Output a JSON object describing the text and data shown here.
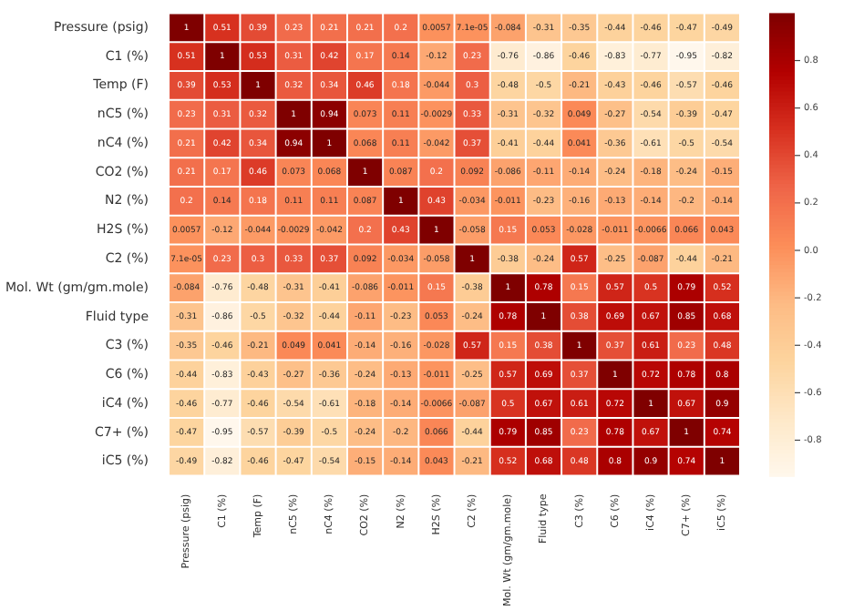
{
  "chart_data": {
    "type": "heatmap",
    "categories": [
      "Pressure (psig)",
      "C1 (%)",
      "Temp (F)",
      "nC5 (%)",
      "nC4 (%)",
      "CO2 (%)",
      "N2 (%)",
      "H2S (%)",
      "C2 (%)",
      "Mol. Wt (gm/gm.mole)",
      "Fluid type",
      "C3 (%)",
      "C6 (%)",
      "iC4 (%)",
      "C7+ (%)",
      "iC5 (%)"
    ],
    "y_categories": [
      "Pressure (psig)",
      "C1 (%)",
      "Temp (F)",
      "nC5 (%)",
      "nC4 (%)",
      "CO2 (%)",
      "N2 (%)",
      "H2S (%)",
      "C2 (%)",
      "Mol. Wt (gm/gm.mole)",
      "Fluid type",
      "C3 (%)",
      "C6 (%)",
      "iC4 (%)",
      "C7+ (%)",
      "iC5 (%)"
    ],
    "cells": [
      [
        1,
        0.51,
        0.39,
        0.23,
        0.21,
        0.21,
        0.2,
        0.0057,
        7.1e-05,
        -0.084,
        -0.31,
        -0.35,
        -0.44,
        -0.46,
        -0.47,
        -0.49
      ],
      [
        0.51,
        1,
        0.53,
        0.31,
        0.42,
        0.17,
        0.14,
        -0.12,
        0.23,
        -0.76,
        -0.86,
        -0.46,
        -0.83,
        -0.77,
        -0.95,
        -0.82
      ],
      [
        0.39,
        0.53,
        1,
        0.32,
        0.34,
        0.46,
        0.18,
        -0.044,
        0.3,
        -0.48,
        -0.5,
        -0.21,
        -0.43,
        -0.46,
        -0.57,
        -0.46
      ],
      [
        0.23,
        0.31,
        0.32,
        1,
        0.94,
        0.073,
        0.11,
        -0.0029,
        0.33,
        -0.31,
        -0.32,
        0.049,
        -0.27,
        -0.54,
        -0.39,
        -0.47
      ],
      [
        0.21,
        0.42,
        0.34,
        0.94,
        1,
        0.068,
        0.11,
        -0.042,
        0.37,
        -0.41,
        -0.44,
        0.041,
        -0.36,
        -0.61,
        -0.5,
        -0.54
      ],
      [
        0.21,
        0.17,
        0.46,
        0.073,
        0.068,
        1,
        0.087,
        0.2,
        0.092,
        -0.086,
        -0.11,
        -0.14,
        -0.24,
        -0.18,
        -0.24,
        -0.15
      ],
      [
        0.2,
        0.14,
        0.18,
        0.11,
        0.11,
        0.087,
        1,
        0.43,
        -0.034,
        -0.011,
        -0.23,
        -0.16,
        -0.13,
        -0.14,
        -0.2,
        -0.14
      ],
      [
        0.0057,
        -0.12,
        -0.044,
        -0.0029,
        -0.042,
        0.2,
        0.43,
        1,
        -0.058,
        0.15,
        0.053,
        -0.028,
        -0.011,
        -0.0066,
        0.066,
        0.043
      ],
      [
        7.1e-05,
        0.23,
        0.3,
        0.33,
        0.37,
        0.092,
        -0.034,
        -0.058,
        1,
        -0.38,
        -0.24,
        0.57,
        -0.25,
        -0.087,
        -0.44,
        -0.21
      ],
      [
        -0.084,
        -0.76,
        -0.48,
        -0.31,
        -0.41,
        -0.086,
        -0.011,
        0.15,
        -0.38,
        1,
        0.78,
        0.15,
        0.57,
        0.5,
        0.79,
        0.52
      ],
      [
        -0.31,
        -0.86,
        -0.5,
        -0.32,
        -0.44,
        -0.11,
        -0.23,
        0.053,
        -0.24,
        0.78,
        1,
        0.38,
        0.69,
        0.67,
        0.85,
        0.68
      ],
      [
        -0.35,
        -0.46,
        -0.21,
        0.049,
        0.041,
        -0.14,
        -0.16,
        -0.028,
        0.57,
        0.15,
        0.38,
        1,
        0.37,
        0.61,
        0.23,
        0.48
      ],
      [
        -0.44,
        -0.83,
        -0.43,
        -0.27,
        -0.36,
        -0.24,
        -0.13,
        -0.011,
        -0.25,
        0.57,
        0.69,
        0.37,
        1,
        0.72,
        0.78,
        0.8
      ],
      [
        -0.46,
        -0.77,
        -0.46,
        -0.54,
        -0.61,
        -0.18,
        -0.14,
        -0.0066,
        -0.087,
        0.5,
        0.67,
        0.61,
        0.72,
        1,
        0.67,
        0.9
      ],
      [
        -0.47,
        -0.95,
        -0.57,
        -0.39,
        -0.5,
        -0.24,
        -0.2,
        0.066,
        -0.44,
        0.79,
        0.85,
        0.23,
        0.78,
        0.67,
        1,
        0.74
      ],
      [
        -0.49,
        -0.82,
        -0.46,
        -0.47,
        -0.54,
        -0.15,
        -0.14,
        0.043,
        -0.21,
        0.52,
        0.68,
        0.48,
        0.8,
        0.9,
        0.74,
        1
      ]
    ],
    "data_labels": true,
    "clim": [
      -0.95,
      1
    ],
    "cticks": [
      {
        "value": -0.8,
        "label": "-0.8"
      },
      {
        "value": -0.6,
        "label": "-0.6"
      },
      {
        "value": -0.4,
        "label": "-0.4"
      },
      {
        "value": -0.2,
        "label": "-0.2"
      },
      {
        "value": 0,
        "label": "0.0"
      },
      {
        "value": 0.2,
        "label": "0.2"
      },
      {
        "value": 0.4,
        "label": "0.4"
      },
      {
        "value": 0.6,
        "label": "0.6"
      },
      {
        "value": 0.8,
        "label": "0.8"
      }
    ]
  }
}
